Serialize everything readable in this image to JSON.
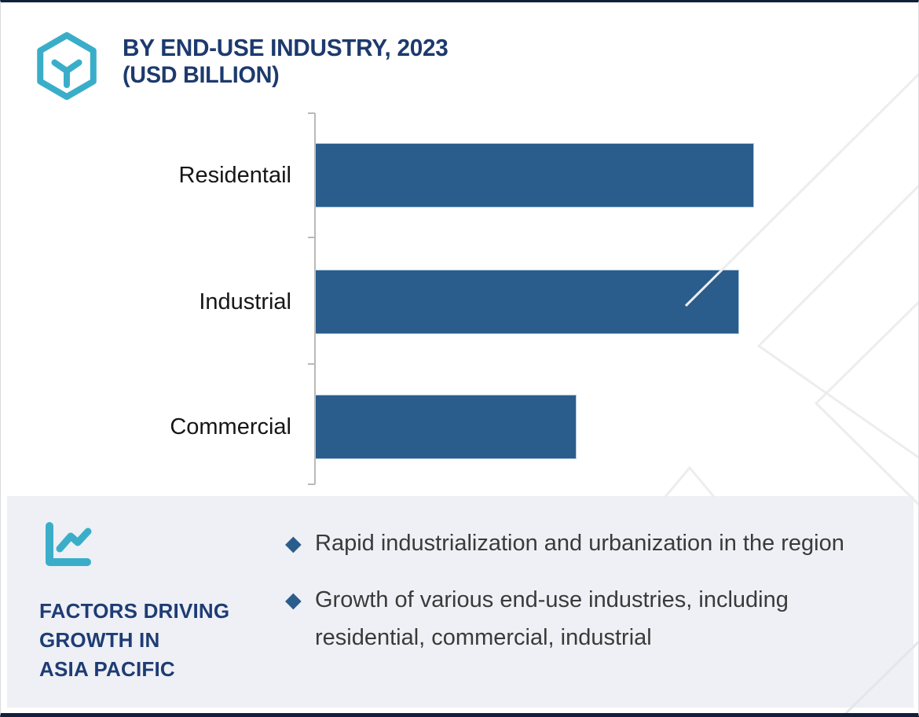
{
  "colors": {
    "accent_teal": "#3aaec9",
    "navy": "#1d3a6d",
    "bar_blue": "#2b5d8c",
    "panel_bg": "#eef0f5",
    "watermark_gray": "#ededed"
  },
  "header": {
    "logo_icon": "hexagon-y-logo",
    "title": "BY END-USE INDUSTRY, 2023",
    "subtitle": "(USD BILLION)"
  },
  "chart_data": {
    "type": "bar",
    "orientation": "horizontal",
    "title": "BY END-USE INDUSTRY, 2023 (USD BILLION)",
    "xlabel": "",
    "ylabel": "",
    "categories": [
      "Residentail",
      "Industrial",
      "Commercial"
    ],
    "values_relative_to_max": [
      1.0,
      0.966,
      0.594
    ],
    "value_axis_labels_visible": false,
    "data_labels_visible": false,
    "legend": "none",
    "grid": "off",
    "bar_color": "#2b5d8c"
  },
  "factors": {
    "icon": "line-chart-icon",
    "heading_lines": [
      "FACTORS DRIVING",
      "GROWTH IN",
      "ASIA PACIFIC"
    ],
    "bullet_marker": "◆",
    "bullets": [
      "Rapid industrialization and urbanization in the region",
      "Growth of various end-use industries, including residential, commercial, industrial"
    ]
  }
}
